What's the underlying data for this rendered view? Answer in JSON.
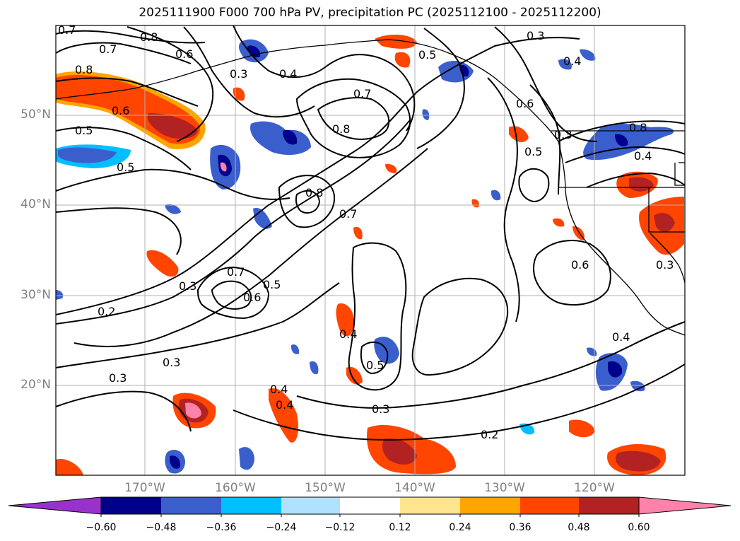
{
  "title": "2025111900 F000 700 hPa PV, precipitation PC (2025112100 - 2025112200)",
  "axes": {
    "lat_labels": [
      "50°N",
      "40°N",
      "30°N",
      "20°N"
    ],
    "lon_labels": [
      "170°W",
      "160°W",
      "150°W",
      "140°W",
      "130°W",
      "120°W"
    ]
  },
  "colorbar": {
    "ticks": [
      "−0.60",
      "−0.48",
      "−0.36",
      "−0.24",
      "−0.12",
      "0.12",
      "0.24",
      "0.36",
      "0.48",
      "0.60"
    ],
    "colors": [
      "#9932cc",
      "#00008b",
      "#3a5fcd",
      "#00bfff",
      "#b0e2ff",
      "#ffffff",
      "#ffe58f",
      "#ffa500",
      "#ff4500",
      "#b22222",
      "#ff82ab"
    ]
  },
  "contour_labels": [
    {
      "text": "0.7"
    },
    {
      "text": "0.8"
    },
    {
      "text": "0.7"
    },
    {
      "text": "0.6"
    },
    {
      "text": "0.8"
    },
    {
      "text": "0.3"
    },
    {
      "text": "0.4"
    },
    {
      "text": "0.7"
    },
    {
      "text": "0.5"
    },
    {
      "text": "0.3"
    },
    {
      "text": "0.4"
    },
    {
      "text": "0.6"
    },
    {
      "text": "0.5"
    },
    {
      "text": "0.8"
    },
    {
      "text": "0.6"
    },
    {
      "text": "0.5"
    },
    {
      "text": "0.5"
    },
    {
      "text": "0.4"
    },
    {
      "text": "0.8"
    },
    {
      "text": "0.7"
    },
    {
      "text": "0.3"
    },
    {
      "text": "0.7"
    },
    {
      "text": "0.6"
    },
    {
      "text": "0.5"
    },
    {
      "text": "0.6"
    },
    {
      "text": "0.3"
    },
    {
      "text": "0.2"
    },
    {
      "text": "0.4"
    },
    {
      "text": "0.5"
    },
    {
      "text": "0.3"
    },
    {
      "text": "0.3"
    },
    {
      "text": "0.4"
    },
    {
      "text": "0.3"
    },
    {
      "text": "0.2"
    },
    {
      "text": "0.4"
    },
    {
      "text": "0.8"
    },
    {
      "text": "0.3"
    },
    {
      "text": "0.4"
    }
  ]
}
